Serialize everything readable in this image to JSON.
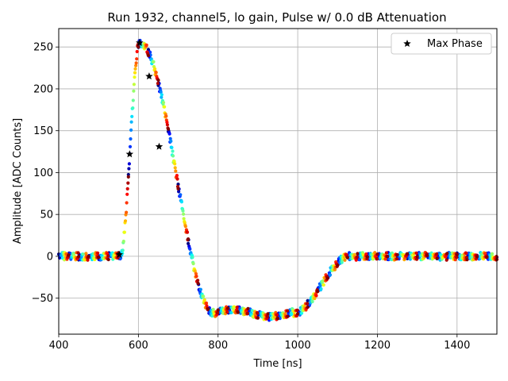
{
  "chart_data": {
    "type": "scatter",
    "title": "Run 1932, channel5, lo gain, Pulse w/ 0.0 dB Attenuation",
    "xlabel": "Time [ns]",
    "ylabel": "Amplitude [ADC Counts]",
    "xlim": [
      400,
      1500
    ],
    "ylim": [
      -93,
      272
    ],
    "xticks": [
      400,
      600,
      800,
      1000,
      1200,
      1400
    ],
    "yticks": [
      -50,
      0,
      50,
      100,
      150,
      200,
      250
    ],
    "grid": true,
    "legend": {
      "position": "top-right",
      "entries": [
        "Max Phase"
      ]
    },
    "pulse_profile": {
      "description": "Overlaid samples from many phases, colored by phase with a jet colormap",
      "baseline": 0,
      "rise_start": 555,
      "peak": {
        "x": 603,
        "y": 255
      },
      "undershoot_min": {
        "x": 900,
        "y": -68
      },
      "recovery_end": 1130
    },
    "series": [
      {
        "name": "Max Phase",
        "marker": "star",
        "color": "#000000",
        "x": [
          552,
          578,
          603,
          627,
          652
        ],
        "y": [
          2,
          122,
          255,
          215,
          131
        ]
      }
    ]
  }
}
